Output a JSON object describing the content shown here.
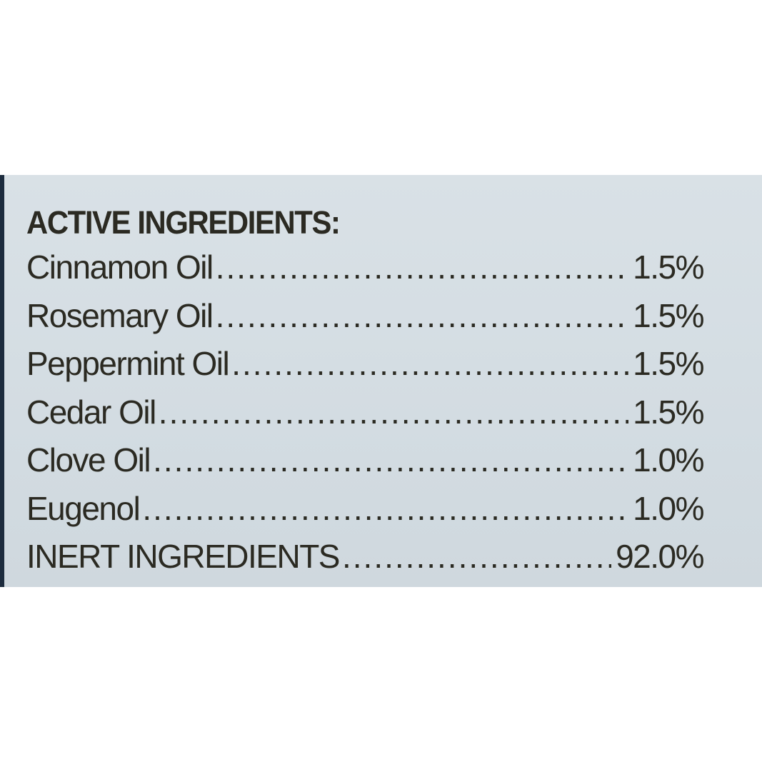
{
  "heading": "ACTIVE INGREDIENTS:",
  "ingredients": [
    {
      "name": "Cinnamon Oil",
      "value": "1.5%"
    },
    {
      "name": "Rosemary Oil",
      "value": "1.5%"
    },
    {
      "name": "Peppermint Oil",
      "value": "1.5%"
    },
    {
      "name": "Cedar Oil",
      "value": "1.5%"
    },
    {
      "name": "Clove Oil",
      "value": "1.0%"
    },
    {
      "name": "Eugenol",
      "value": "1.0%"
    },
    {
      "name": "INERT INGREDIENTS",
      "value": "92.0%"
    }
  ],
  "colors": {
    "label_background": "#d5dde3",
    "text": "#2b2a22",
    "edge": "#1d2c3e"
  }
}
